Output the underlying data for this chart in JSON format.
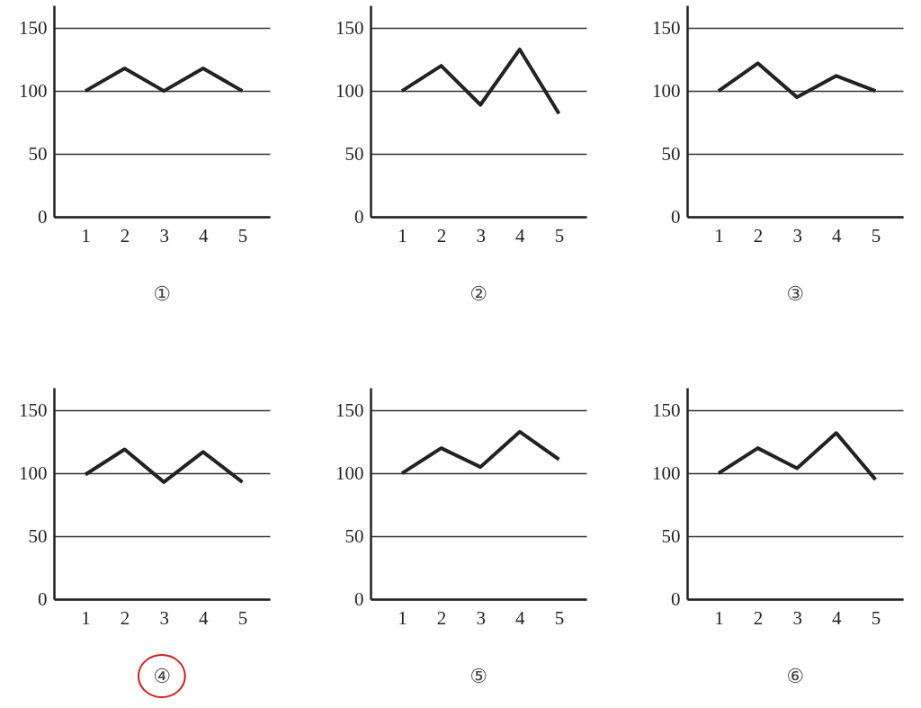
{
  "chart_data": [
    {
      "type": "line",
      "title": "①",
      "x": [
        1,
        2,
        3,
        4,
        5
      ],
      "values": [
        100,
        118,
        100,
        118,
        100
      ],
      "color": "#222222",
      "xlim": [
        0.2,
        5.7
      ],
      "xticks": [
        1,
        2,
        3,
        4,
        5
      ],
      "ylim": [
        0,
        168
      ],
      "yticks": [
        0,
        50,
        100,
        150
      ],
      "grid": "y",
      "line_style": "solid"
    },
    {
      "type": "line",
      "title": "②",
      "x": [
        1,
        2,
        3,
        4,
        5
      ],
      "values": [
        100,
        120,
        89,
        133,
        82
      ],
      "color": "#222222",
      "xlim": [
        0.2,
        5.7
      ],
      "xticks": [
        1,
        2,
        3,
        4,
        5
      ],
      "ylim": [
        0,
        168
      ],
      "yticks": [
        0,
        50,
        100,
        150
      ],
      "grid": "y",
      "line_style": "solid"
    },
    {
      "type": "line",
      "title": "③",
      "x": [
        1,
        2,
        3,
        4,
        5
      ],
      "values": [
        100,
        122,
        95,
        112,
        100
      ],
      "color": "#222222",
      "xlim": [
        0.2,
        5.7
      ],
      "xticks": [
        1,
        2,
        3,
        4,
        5
      ],
      "ylim": [
        0,
        168
      ],
      "yticks": [
        0,
        50,
        100,
        150
      ],
      "grid": "y",
      "line_style": "solid"
    },
    {
      "type": "line",
      "title": "④",
      "x": [
        1,
        2,
        3,
        4,
        5
      ],
      "values": [
        99,
        119,
        93,
        117,
        93
      ],
      "color": "#222222",
      "xlim": [
        0.2,
        5.7
      ],
      "xticks": [
        1,
        2,
        3,
        4,
        5
      ],
      "ylim": [
        0,
        168
      ],
      "yticks": [
        0,
        50,
        100,
        150
      ],
      "grid": "y",
      "line_style": "solid"
    },
    {
      "type": "line",
      "title": "⑤",
      "x": [
        1,
        2,
        3,
        4,
        5
      ],
      "values": [
        100,
        120,
        105,
        133,
        111
      ],
      "color": "#222222",
      "xlim": [
        0.2,
        5.7
      ],
      "xticks": [
        1,
        2,
        3,
        4,
        5
      ],
      "ylim": [
        0,
        168
      ],
      "yticks": [
        0,
        50,
        100,
        150
      ],
      "grid": "y",
      "line_style": "solid"
    },
    {
      "type": "line",
      "title": "⑥",
      "x": [
        1,
        2,
        3,
        4,
        5
      ],
      "values": [
        100,
        120,
        104,
        132,
        95
      ],
      "color": "#222222",
      "xlim": [
        0.2,
        5.7
      ],
      "xticks": [
        1,
        2,
        3,
        4,
        5
      ],
      "ylim": [
        0,
        168
      ],
      "yticks": [
        0,
        50,
        100,
        150
      ],
      "grid": "y",
      "line_style": "solid"
    }
  ]
}
